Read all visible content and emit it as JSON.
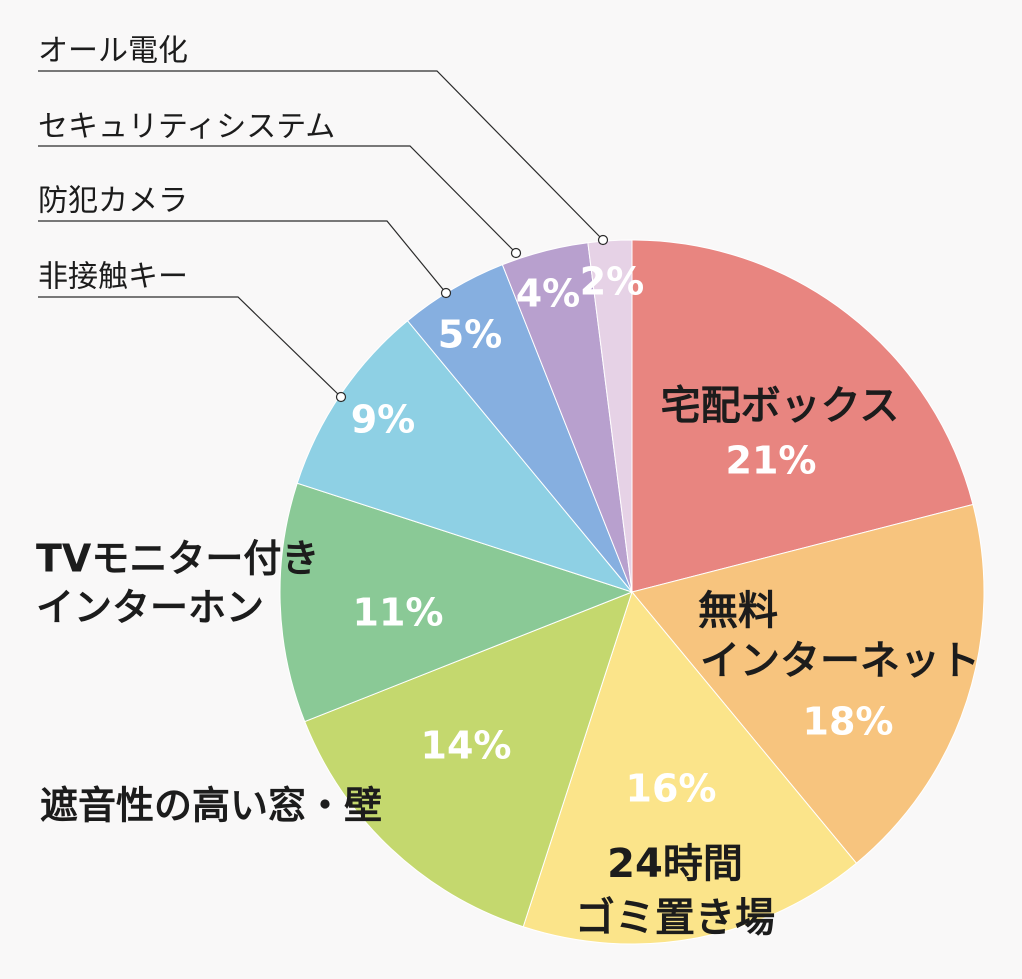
{
  "chart_data": {
    "type": "pie",
    "slices": [
      {
        "label": [
          "宅配ボックス"
        ],
        "value": 21,
        "value_label": "21%",
        "color": "#e88580",
        "label_style": "inside"
      },
      {
        "label": [
          "無料",
          "インターネット"
        ],
        "value": 18,
        "value_label": "18%",
        "color": "#f7c47e",
        "label_style": "inside"
      },
      {
        "label": [
          "24時間",
          "ゴミ置き場"
        ],
        "value": 16,
        "value_label": "16%",
        "color": "#fbe48a",
        "label_style": "inside"
      },
      {
        "label": [
          "遮音性の高い窓・壁"
        ],
        "value": 14,
        "value_label": "14%",
        "color": "#c4d86e",
        "label_style": "outside"
      },
      {
        "label": [
          "TVモニター付き",
          "インターホン"
        ],
        "value": 11,
        "value_label": "11%",
        "color": "#8ac996",
        "label_style": "outside"
      },
      {
        "label": [
          "非接触キー"
        ],
        "value": 9,
        "value_label": "9%",
        "color": "#8ed0e4",
        "label_style": "leader"
      },
      {
        "label": [
          "防犯カメラ"
        ],
        "value": 5,
        "value_label": "5%",
        "color": "#86afe0",
        "label_style": "leader"
      },
      {
        "label": [
          "セキュリティシステム"
        ],
        "value": 4,
        "value_label": "4%",
        "color": "#b8a0ce",
        "label_style": "leader"
      },
      {
        "label": [
          "オール電化"
        ],
        "value": 2,
        "value_label": "2%",
        "color": "#e6d2e6",
        "label_style": "leader"
      }
    ],
    "start_angle": "12 o'clock",
    "direction": "clockwise",
    "legend": "none"
  }
}
